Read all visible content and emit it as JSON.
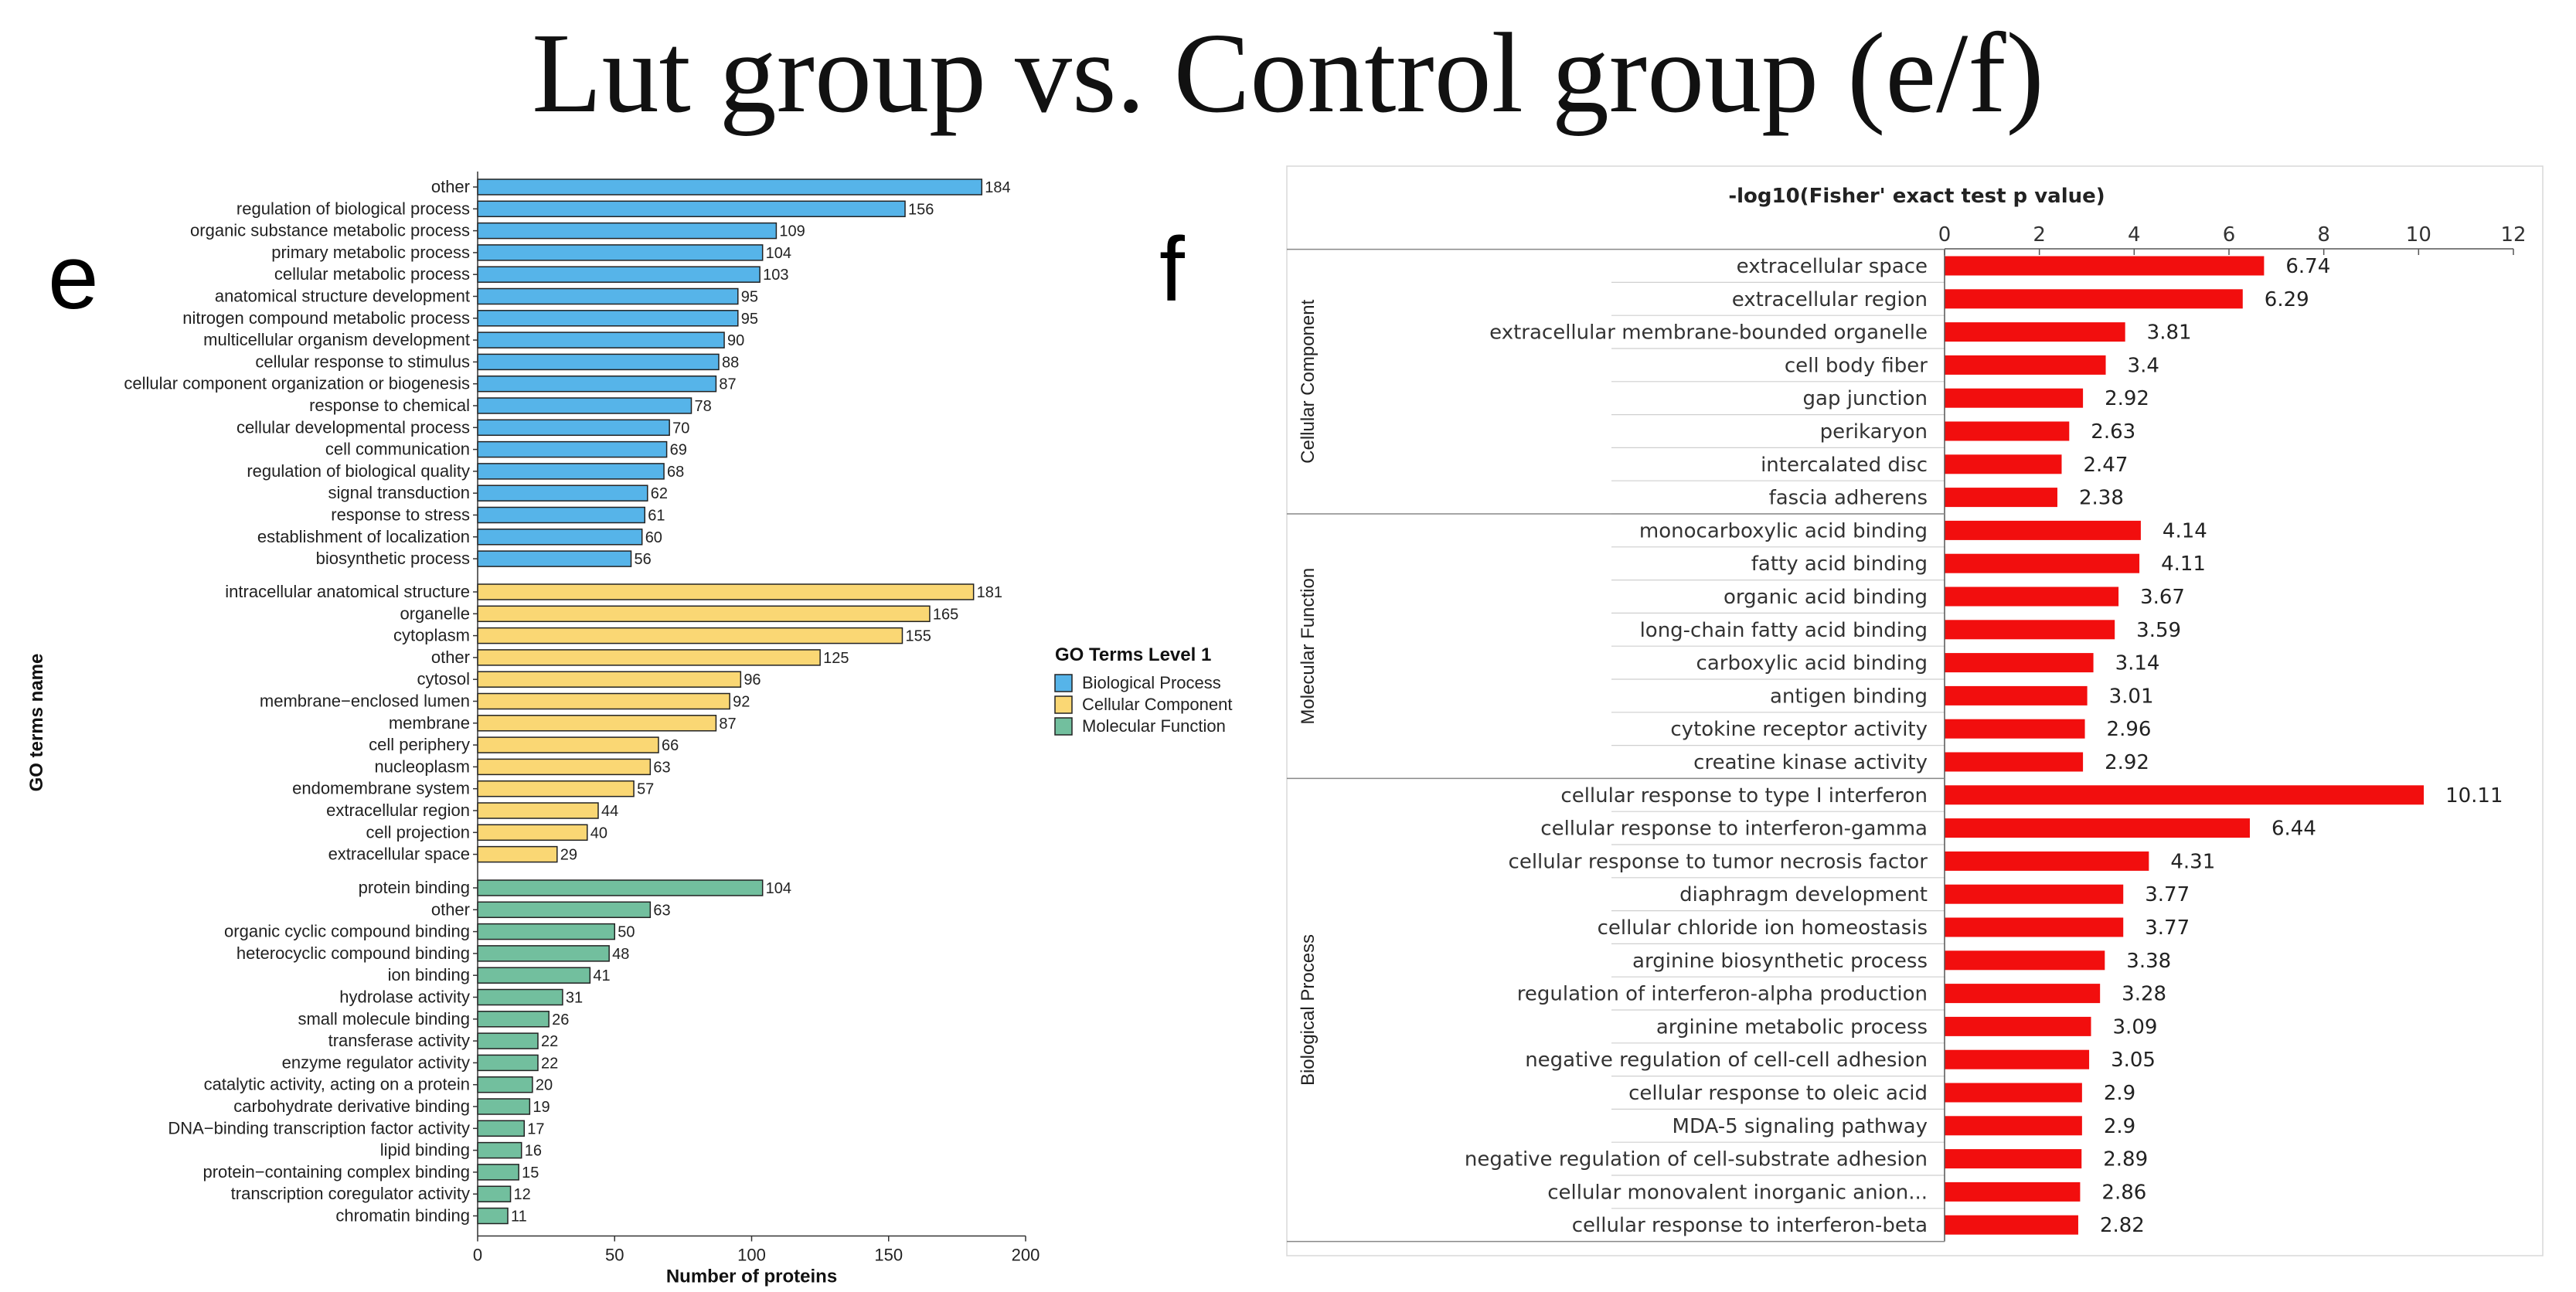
{
  "title": "Lut group vs. Control group (e/f)",
  "panels": {
    "e_letter": "e",
    "f_letter": "f"
  },
  "colors": {
    "bp": "#56B4E9",
    "cc": "#FAD774",
    "mf": "#72BF9E",
    "bar_f": "#F20E0E",
    "bar_stroke": "#222222"
  },
  "chart_data": [
    {
      "type": "bar",
      "orientation": "horizontal",
      "panel": "e",
      "xlabel": "Number of proteins",
      "ylabel": "GO terms name",
      "xlim": [
        0,
        200
      ],
      "xticks": [
        0,
        50,
        100,
        150,
        200
      ],
      "legend": {
        "title": "GO Terms Level 1",
        "position": "right",
        "entries": [
          "Biological Process",
          "Cellular Component",
          "Molecular Function"
        ]
      },
      "groups": [
        {
          "name": "Biological Process",
          "categories": [
            "other",
            "regulation of biological process",
            "organic substance metabolic process",
            "primary metabolic process",
            "cellular metabolic process",
            "anatomical structure development",
            "nitrogen compound metabolic process",
            "multicellular organism development",
            "cellular response to stimulus",
            "cellular component organization or biogenesis",
            "response to chemical",
            "cellular developmental process",
            "cell communication",
            "regulation of biological quality",
            "signal transduction",
            "response to stress",
            "establishment of localization",
            "biosynthetic process"
          ],
          "values": [
            184,
            156,
            109,
            104,
            103,
            95,
            95,
            90,
            88,
            87,
            78,
            70,
            69,
            68,
            62,
            61,
            60,
            56
          ]
        },
        {
          "name": "Cellular Component",
          "categories": [
            "intracellular anatomical structure",
            "organelle",
            "cytoplasm",
            "other",
            "cytosol",
            "membrane−enclosed lumen",
            "membrane",
            "cell periphery",
            "nucleoplasm",
            "endomembrane system",
            "extracellular region",
            "cell projection",
            "extracellular space"
          ],
          "values": [
            181,
            165,
            155,
            125,
            96,
            92,
            87,
            66,
            63,
            57,
            44,
            40,
            29
          ]
        },
        {
          "name": "Molecular Function",
          "categories": [
            "protein binding",
            "other",
            "organic cyclic compound binding",
            "heterocyclic compound binding",
            "ion binding",
            "hydrolase activity",
            "small molecule binding",
            "transferase activity",
            "enzyme regulator activity",
            "catalytic activity, acting on a protein",
            "carbohydrate derivative binding",
            "DNA−binding transcription factor activity",
            "lipid binding",
            "protein−containing complex binding",
            "transcription coregulator activity",
            "chromatin binding"
          ],
          "values": [
            104,
            63,
            50,
            48,
            41,
            31,
            26,
            22,
            22,
            20,
            19,
            17,
            16,
            15,
            12,
            11
          ]
        }
      ]
    },
    {
      "type": "bar",
      "orientation": "horizontal",
      "panel": "f",
      "title": "-log10(Fisher' exact test p value)",
      "xlim": [
        0,
        12
      ],
      "xticks": [
        0,
        2,
        4,
        6,
        8,
        10,
        12
      ],
      "groups": [
        {
          "name": "Cellular Component",
          "categories": [
            "extracellular space",
            "extracellular region",
            "extracellular membrane-bounded organelle",
            "cell body fiber",
            "gap junction",
            "perikaryon",
            "intercalated disc",
            "fascia adherens"
          ],
          "values": [
            "6.74",
            "6.29",
            "3.81",
            "3.4",
            "2.92",
            "2.63",
            "2.47",
            "2.38"
          ]
        },
        {
          "name": "Molecular Function",
          "categories": [
            "monocarboxylic acid binding",
            "fatty acid binding",
            "organic acid binding",
            "long-chain fatty acid binding",
            "carboxylic acid binding",
            "antigen binding",
            "cytokine receptor activity",
            "creatine kinase activity"
          ],
          "values": [
            "4.14",
            "4.11",
            "3.67",
            "3.59",
            "3.14",
            "3.01",
            "2.96",
            "2.92"
          ]
        },
        {
          "name": "Biological Process",
          "categories": [
            "cellular response to type I interferon",
            "cellular response to interferon-gamma",
            "cellular response to tumor necrosis factor",
            "diaphragm development",
            "cellular chloride ion homeostasis",
            "arginine biosynthetic process",
            "regulation of interferon-alpha production",
            "arginine metabolic process",
            "negative regulation of cell-cell adhesion",
            "cellular response to oleic acid",
            "MDA-5 signaling pathway",
            "negative regulation of cell-substrate adhesion",
            "cellular monovalent inorganic anion...",
            "cellular response to interferon-beta"
          ],
          "values": [
            "10.11",
            "6.44",
            "4.31",
            "3.77",
            "3.77",
            "3.38",
            "3.28",
            "3.09",
            "3.05",
            "2.9",
            "2.9",
            "2.89",
            "2.86",
            "2.82"
          ]
        }
      ]
    }
  ]
}
